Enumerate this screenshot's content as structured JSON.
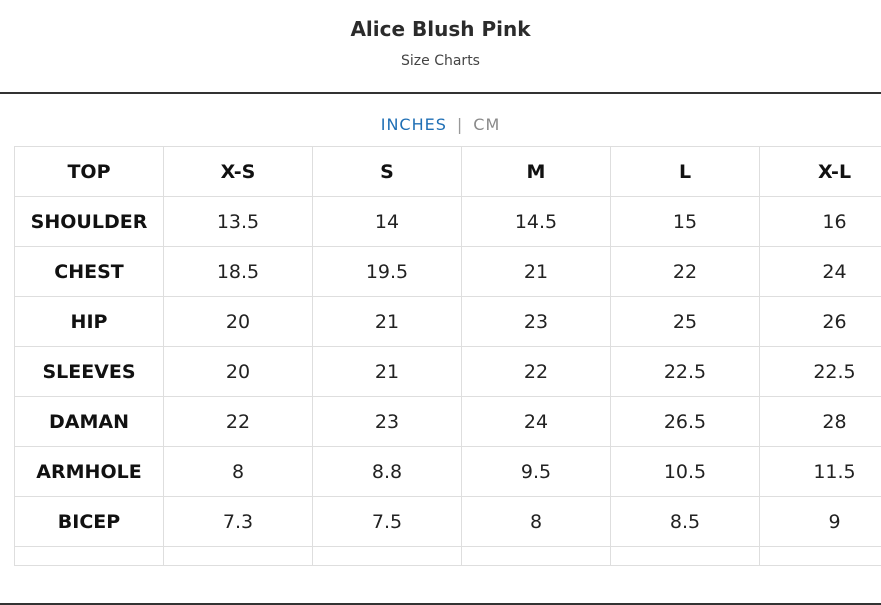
{
  "header": {
    "title": "Alice Blush Pink",
    "subtitle": "Size Charts"
  },
  "units": {
    "active": "INCHES",
    "separator": "|",
    "inactive": "CM"
  },
  "table": {
    "headers": [
      "TOP",
      "X-S",
      "S",
      "M",
      "L",
      "X-L"
    ],
    "rows": [
      {
        "label": "SHOULDER",
        "values": [
          "13.5",
          "14",
          "14.5",
          "15",
          "16"
        ]
      },
      {
        "label": "CHEST",
        "values": [
          "18.5",
          "19.5",
          "21",
          "22",
          "24"
        ]
      },
      {
        "label": "HIP",
        "values": [
          "20",
          "21",
          "23",
          "25",
          "26"
        ]
      },
      {
        "label": "SLEEVES",
        "values": [
          "20",
          "21",
          "22",
          "22.5",
          "22.5"
        ]
      },
      {
        "label": "DAMAN",
        "values": [
          "22",
          "23",
          "24",
          "26.5",
          "28"
        ]
      },
      {
        "label": "ARMHOLE",
        "values": [
          "8",
          "8.8",
          "9.5",
          "10.5",
          "11.5"
        ]
      },
      {
        "label": "BICEP",
        "values": [
          "7.3",
          "7.5",
          "8",
          "8.5",
          "9"
        ]
      }
    ]
  },
  "colors": {
    "accent": "#1f6fb5",
    "border": "#dedede"
  }
}
